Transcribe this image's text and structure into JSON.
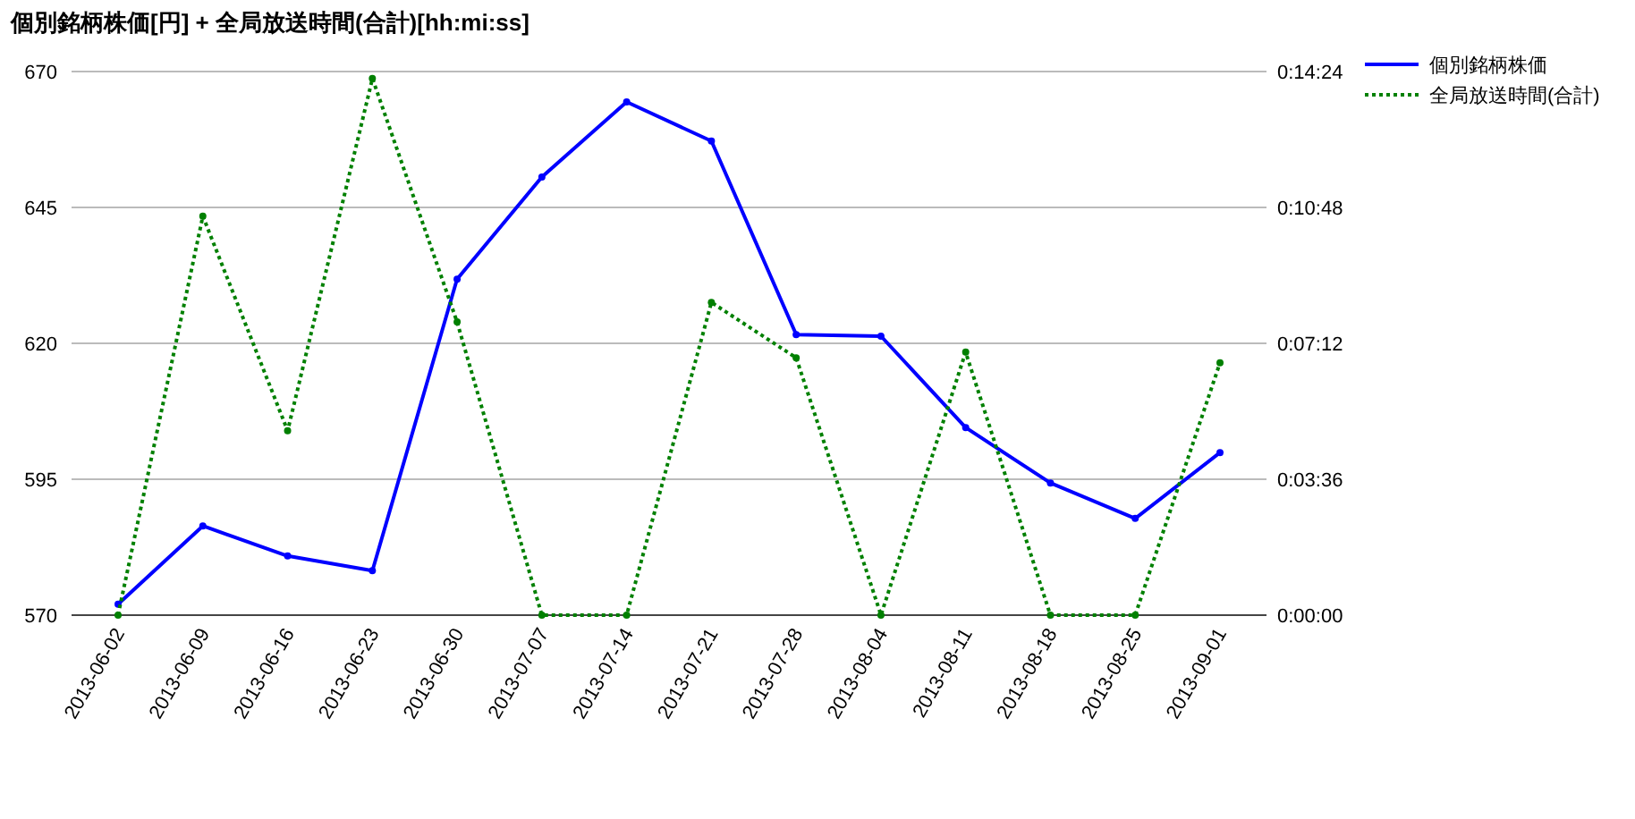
{
  "chart_data": {
    "type": "line",
    "title": "個別銘柄株価[円] + 全局放送時間(合計)[hh:mi:ss]",
    "categories": [
      "2013-06-02",
      "2013-06-09",
      "2013-06-16",
      "2013-06-23",
      "2013-06-30",
      "2013-07-07",
      "2013-07-14",
      "2013-07-21",
      "2013-07-28",
      "2013-08-04",
      "2013-08-11",
      "2013-08-18",
      "2013-08-25",
      "2013-09-01"
    ],
    "series": [
      {
        "name": "個別銘柄株価",
        "color": "#0000ff",
        "line_style": "solid",
        "values": [
          572,
          586.4,
          580.9,
          578.2,
          631.8,
          650.6,
          664.4,
          657.2,
          621.6,
          621.3,
          604.5,
          594.3,
          587.8,
          599.9
        ]
      },
      {
        "name": "全局放送時間(合計)",
        "color": "#008000",
        "line_style": "dotted",
        "axis": "y2",
        "values": [
          0,
          634,
          293,
          853,
          466,
          0,
          0,
          497,
          409,
          0,
          418,
          0,
          0,
          401
        ]
      }
    ],
    "ylim": [
      570,
      670
    ],
    "yticks": [
      570,
      595,
      620,
      645,
      670
    ],
    "y2lim": [
      0,
      864
    ],
    "y2ticks": [
      {
        "value": 0,
        "label": "0:00:00"
      },
      {
        "value": 216,
        "label": "0:03:36"
      },
      {
        "value": 432,
        "label": "0:07:12"
      },
      {
        "value": 648,
        "label": "0:10:48"
      },
      {
        "value": 864,
        "label": "0:14:24"
      }
    ],
    "grid": "y",
    "legend": "top right",
    "marker": "circle"
  }
}
